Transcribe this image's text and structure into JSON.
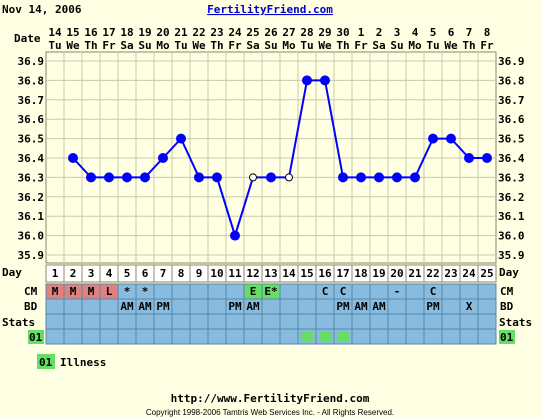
{
  "header": {
    "date": "Nov 14, 2006",
    "site": "FertilityFriend.com"
  },
  "labels": {
    "date": "Date",
    "day": "Day",
    "cm": "CM",
    "bd": "BD",
    "stats": "Stats",
    "legend_code": "01"
  },
  "legend": [
    {
      "code": "01",
      "label": "Illness",
      "color": "#66dd66"
    }
  ],
  "footer": {
    "url": "http://www.FertilityFriend.com",
    "copyright": "Copyright 1998-2006 Tamtris Web Services Inc. - All Rights Reserved."
  },
  "colors": {
    "line": "#0000ff",
    "grid": "#c8c8aa",
    "row_bg": "#88bbdd",
    "menses": "#e08080",
    "egg_white": "#66dd66",
    "illness": "#66dd66",
    "chart_bg": "#ffffe4"
  },
  "chart_data": {
    "type": "line",
    "dates": [
      "14",
      "15",
      "16",
      "17",
      "18",
      "19",
      "20",
      "21",
      "22",
      "23",
      "24",
      "25",
      "26",
      "27",
      "28",
      "29",
      "30",
      "1",
      "2",
      "3",
      "4",
      "5",
      "6",
      "7",
      "8"
    ],
    "weekdays": [
      "Tu",
      "We",
      "Th",
      "Fr",
      "Sa",
      "Su",
      "Mo",
      "Tu",
      "We",
      "Th",
      "Fr",
      "Sa",
      "Su",
      "Mo",
      "Tu",
      "We",
      "Th",
      "Fr",
      "Sa",
      "Su",
      "Mo",
      "Tu",
      "We",
      "Th",
      "Fr"
    ],
    "cycle_days": [
      "1",
      "2",
      "3",
      "4",
      "5",
      "6",
      "7",
      "8",
      "9",
      "10",
      "11",
      "12",
      "13",
      "14",
      "15",
      "16",
      "17",
      "18",
      "19",
      "20",
      "21",
      "22",
      "23",
      "24",
      "25"
    ],
    "temps": [
      null,
      36.4,
      36.3,
      36.3,
      36.3,
      36.3,
      36.4,
      36.5,
      36.3,
      36.3,
      36.0,
      36.3,
      36.3,
      36.3,
      36.8,
      36.8,
      36.3,
      36.3,
      36.3,
      36.3,
      36.3,
      36.5,
      36.5,
      36.4,
      36.4
    ],
    "open_points": [
      11,
      13
    ],
    "y_ticks": [
      "36.9",
      "36.8",
      "36.7",
      "36.6",
      "36.5",
      "36.4",
      "36.3",
      "36.2",
      "36.1",
      "36.0",
      "35.9"
    ],
    "ylim": [
      35.9,
      36.9
    ],
    "cm": [
      "M",
      "M",
      "M",
      "L",
      "*",
      "*",
      "",
      "",
      "",
      "",
      "",
      "E",
      "E*",
      "",
      "",
      "C",
      "C",
      "",
      "",
      "-",
      "",
      "C",
      "",
      "",
      ""
    ],
    "bd": [
      "",
      "",
      "",
      "",
      "AM",
      "AM",
      "PM",
      "",
      "",
      "",
      "PM",
      "AM",
      "",
      "",
      "",
      "",
      "PM",
      "AM",
      "AM",
      "",
      "",
      "PM",
      "",
      "X",
      ""
    ],
    "stats": [
      false,
      false,
      false,
      false,
      false,
      false,
      false,
      false,
      false,
      false,
      false,
      false,
      false,
      false,
      true,
      true,
      true,
      false,
      false,
      false,
      false,
      false,
      false,
      false,
      false
    ]
  }
}
